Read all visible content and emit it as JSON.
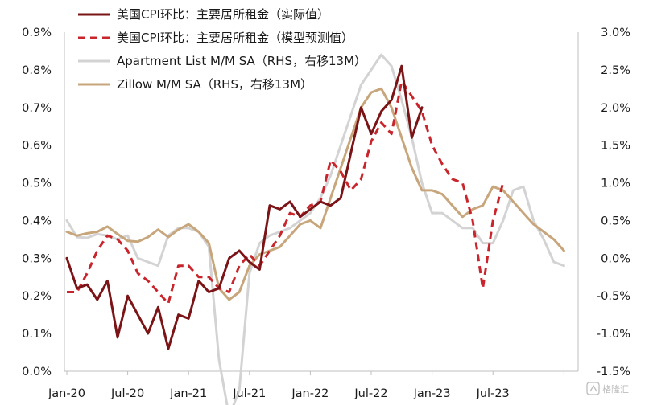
{
  "chart_data": {
    "type": "line",
    "title": "",
    "xlabel": "",
    "ylabel": "",
    "x_ticks": [
      "Jan-20",
      "Jul-20",
      "Jan-21",
      "Jul-21",
      "Jan-22",
      "Jul-22",
      "Jan-23",
      "Jul-23"
    ],
    "y_left": {
      "range": [
        0.0,
        0.9
      ],
      "ticks": [
        "0.0%",
        "0.1%",
        "0.2%",
        "0.3%",
        "0.4%",
        "0.5%",
        "0.6%",
        "0.7%",
        "0.8%",
        "0.9%"
      ]
    },
    "y_right": {
      "range": [
        -1.5,
        3.0
      ],
      "ticks": [
        "-1.5%",
        "-1.0%",
        "-0.5%",
        "0.0%",
        "0.5%",
        "1.0%",
        "1.5%",
        "2.0%",
        "2.5%",
        "3.0%"
      ]
    },
    "grid": false,
    "legend_position": "top-left",
    "series": [
      {
        "name": "美国CPI环比：主要居所租金（实际值）",
        "axis": "left",
        "color": "#7b1416",
        "style": "solid",
        "start": "2020-01",
        "values": [
          0.3,
          0.22,
          0.23,
          0.19,
          0.24,
          0.09,
          0.2,
          0.15,
          0.1,
          0.17,
          0.06,
          0.15,
          0.14,
          0.24,
          0.21,
          0.22,
          0.3,
          0.32,
          0.29,
          0.27,
          0.44,
          0.43,
          0.45,
          0.41,
          0.43,
          0.45,
          0.44,
          0.46,
          0.58,
          0.7,
          0.63,
          0.69,
          0.72,
          0.81,
          0.62,
          0.7,
          null,
          null,
          null,
          null,
          null,
          null,
          null,
          null,
          null,
          null,
          null,
          null,
          null,
          null
        ]
      },
      {
        "name": "美国CPI环比：主要居所租金（模型预测值）",
        "axis": "left",
        "color": "#c8252c",
        "style": "dashed",
        "start": "2020-01",
        "values": [
          0.21,
          0.21,
          0.26,
          0.32,
          0.36,
          0.35,
          0.32,
          0.26,
          0.24,
          0.21,
          0.18,
          0.28,
          0.28,
          0.25,
          0.25,
          0.22,
          0.21,
          0.28,
          0.31,
          0.28,
          0.32,
          0.36,
          0.42,
          0.41,
          0.44,
          0.45,
          0.56,
          0.53,
          0.48,
          0.51,
          0.61,
          0.66,
          0.63,
          0.77,
          0.73,
          0.69,
          0.6,
          0.55,
          0.51,
          0.5,
          0.4,
          0.22,
          0.4,
          0.5,
          null,
          null,
          null,
          null,
          null,
          null
        ]
      },
      {
        "name": "Apartment List  M/M SA（RHS，右移13M）",
        "axis": "right",
        "color": "#d3d3d3",
        "style": "solid",
        "start": "2020-01",
        "values": [
          0.5,
          0.28,
          0.27,
          0.32,
          0.3,
          0.25,
          0.3,
          0.0,
          -0.05,
          -0.1,
          0.3,
          0.4,
          0.4,
          0.35,
          0.15,
          -1.35,
          -2.1,
          -1.75,
          -0.2,
          0.2,
          0.3,
          0.35,
          0.4,
          0.5,
          0.6,
          0.8,
          1.1,
          1.5,
          1.9,
          2.3,
          2.5,
          2.7,
          2.55,
          2.1,
          1.6,
          1.0,
          0.6,
          0.6,
          0.5,
          0.4,
          0.4,
          0.2,
          0.2,
          0.5,
          0.9,
          0.95,
          0.5,
          0.25,
          -0.05,
          -0.1
        ]
      },
      {
        "name": "Zillow M/M SA（RHS，右移13M）",
        "axis": "right",
        "color": "#c8a67c",
        "style": "solid",
        "start": "2020-01",
        "values": [
          0.35,
          0.3,
          0.33,
          0.35,
          0.42,
          0.32,
          0.23,
          0.22,
          0.28,
          0.38,
          0.28,
          0.38,
          0.45,
          0.35,
          0.2,
          -0.4,
          -0.55,
          -0.45,
          -0.1,
          0.05,
          0.1,
          0.15,
          0.3,
          0.45,
          0.5,
          0.4,
          0.8,
          1.2,
          1.6,
          2.0,
          2.2,
          2.25,
          2.0,
          1.6,
          1.2,
          0.9,
          0.9,
          0.85,
          0.7,
          0.55,
          0.65,
          0.7,
          0.95,
          0.9,
          0.75,
          0.6,
          0.45,
          0.35,
          0.25,
          0.1
        ]
      }
    ]
  },
  "watermark": {
    "text": "格隆汇"
  }
}
